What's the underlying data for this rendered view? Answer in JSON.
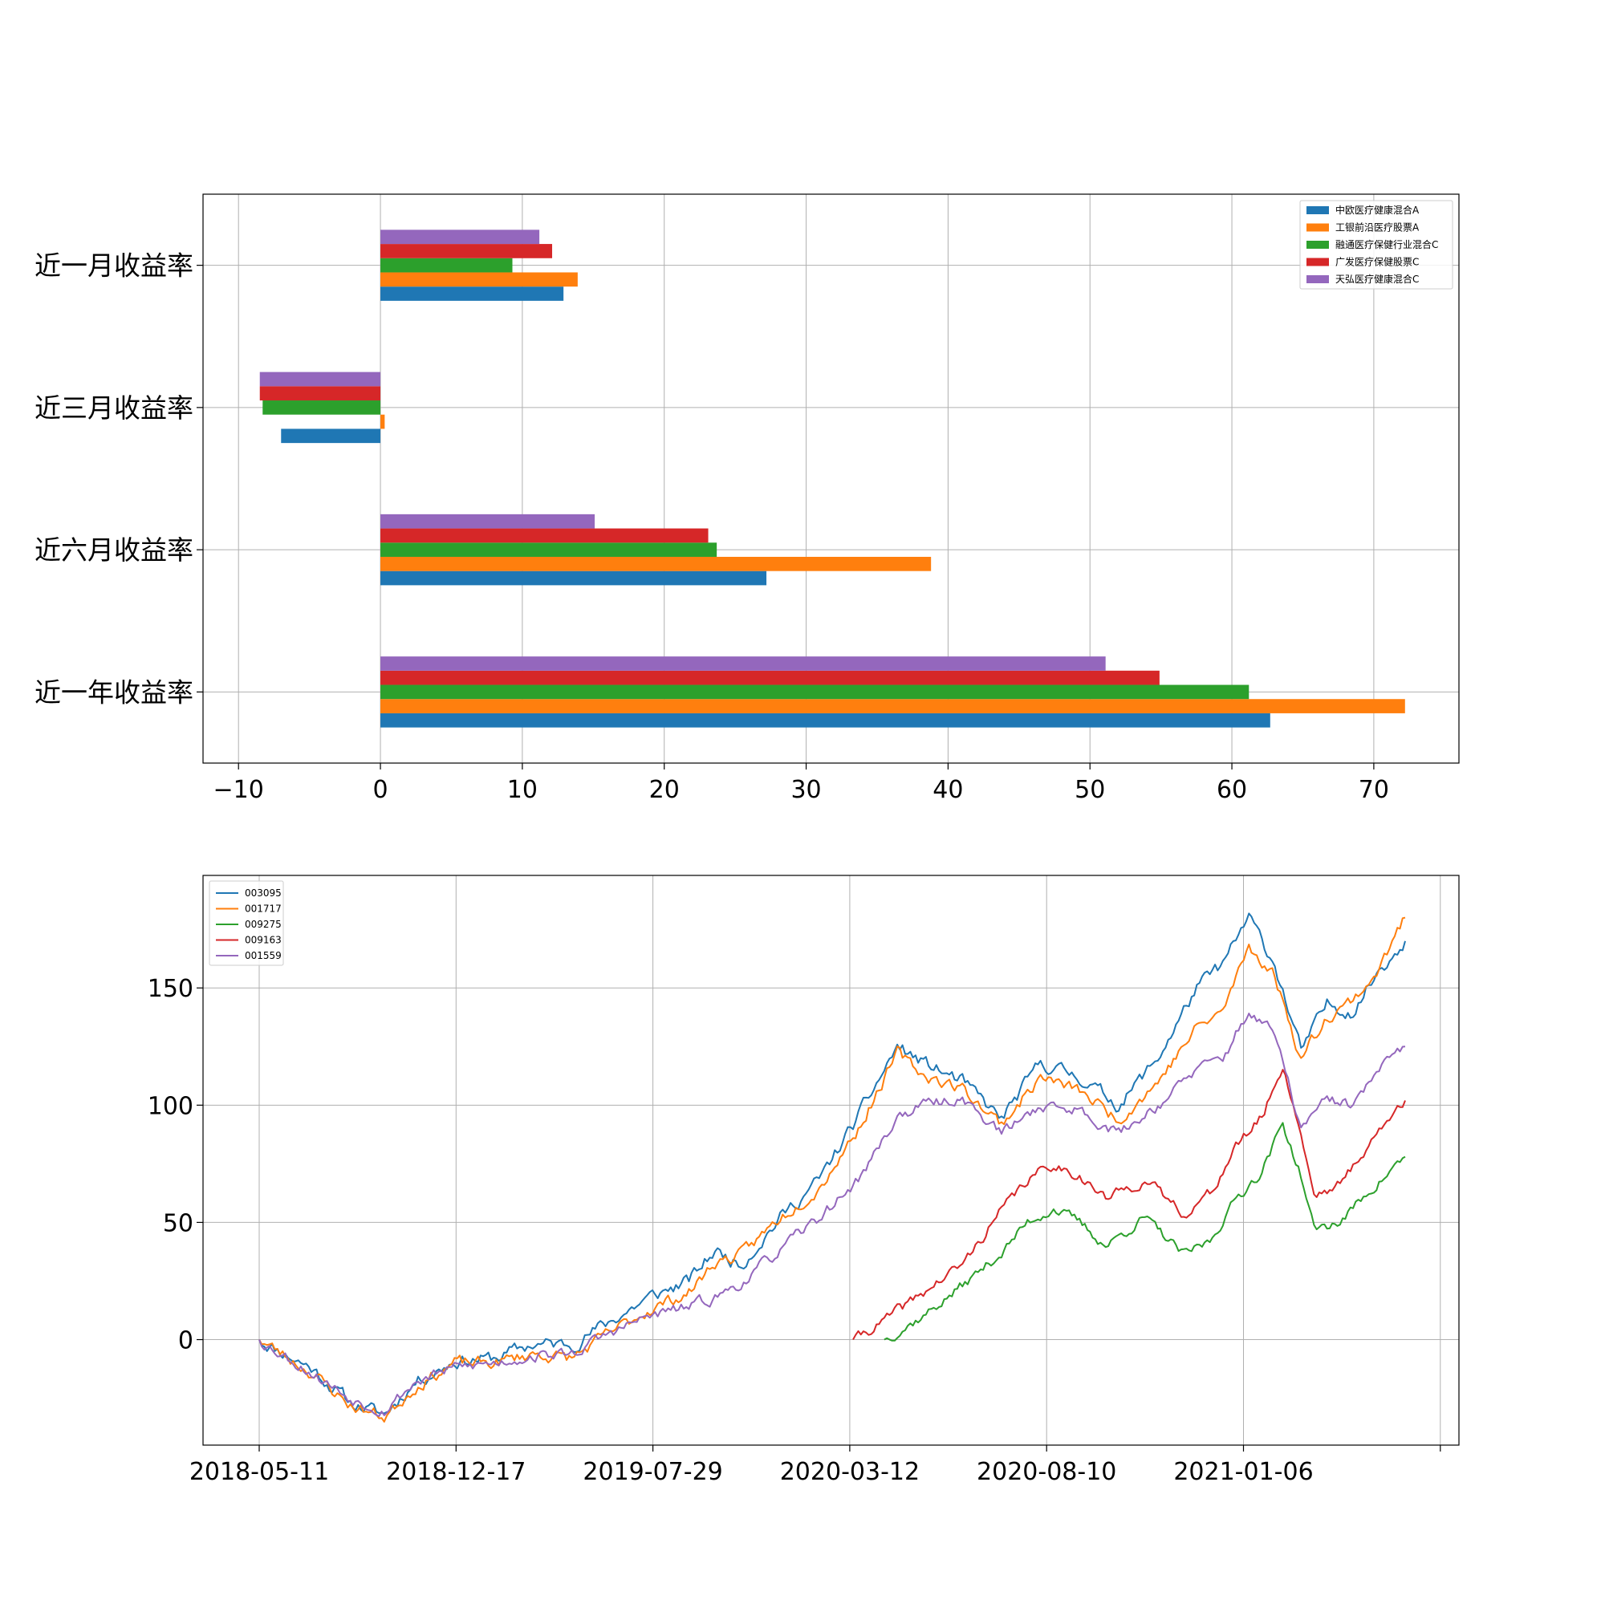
{
  "chart_data": [
    {
      "type": "bar",
      "orientation": "horizontal",
      "categories": [
        "近一月收益率",
        "近三月收益率",
        "近六月收益率",
        "近一年收益率"
      ],
      "series": [
        {
          "name": "中欧医疗健康混合A",
          "color": "#1f77b4",
          "values": [
            12.9,
            -7.0,
            27.2,
            62.7
          ]
        },
        {
          "name": "工银前沿医疗股票A",
          "color": "#ff7f0e",
          "values": [
            13.9,
            0.3,
            38.8,
            72.2
          ]
        },
        {
          "name": "融通医疗保健行业混合C",
          "color": "#2ca02c",
          "values": [
            9.3,
            -8.3,
            23.7,
            61.2
          ]
        },
        {
          "name": "广发医疗保健股票C",
          "color": "#d62728",
          "values": [
            12.1,
            -8.5,
            23.1,
            54.9
          ]
        },
        {
          "name": "天弘医疗健康混合C",
          "color": "#9467bd",
          "values": [
            11.2,
            -8.5,
            15.1,
            51.1
          ]
        }
      ],
      "xticks": [
        "−10",
        "0",
        "10",
        "20",
        "30",
        "40",
        "50",
        "60",
        "70"
      ],
      "xlim": [
        -12.5,
        76
      ],
      "grid": true,
      "legend_position": "upper right"
    },
    {
      "type": "line",
      "xticks": [
        "2018-05-11",
        "2018-12-17",
        "2019-07-29",
        "2020-03-12",
        "2020-08-10",
        "2021-01-06",
        ""
      ],
      "yticks": [
        "0",
        "50",
        "100",
        "150"
      ],
      "ylim": [
        -45,
        198
      ],
      "grid": true,
      "legend_position": "upper left",
      "series": [
        {
          "name": "003095",
          "color": "#1f77b4",
          "start": 0,
          "anchors": [
            [
              0,
              0
            ],
            [
              20,
              -12
            ],
            [
              35,
              -27
            ],
            [
              48,
              -32
            ],
            [
              60,
              -18
            ],
            [
              75,
              -9
            ],
            [
              90,
              -8
            ],
            [
              105,
              -2
            ],
            [
              120,
              -2
            ],
            [
              135,
              8
            ],
            [
              150,
              18
            ],
            [
              165,
              25
            ],
            [
              175,
              38
            ],
            [
              185,
              32
            ],
            [
              200,
              52
            ],
            [
              215,
              68
            ],
            [
              230,
              95
            ],
            [
              245,
              125
            ],
            [
              255,
              118
            ],
            [
              270,
              110
            ],
            [
              285,
              94
            ],
            [
              300,
              118
            ],
            [
              315,
              112
            ],
            [
              330,
              100
            ],
            [
              345,
              120
            ],
            [
              360,
              150
            ],
            [
              370,
              160
            ],
            [
              380,
              180
            ],
            [
              390,
              160
            ],
            [
              400,
              123
            ],
            [
              410,
              143
            ],
            [
              420,
              140
            ],
            [
              430,
              158
            ],
            [
              440,
              170
            ]
          ],
          "values": []
        },
        {
          "name": "001717",
          "color": "#ff7f0e",
          "start": 0,
          "anchors": [
            [
              0,
              0
            ],
            [
              20,
              -14
            ],
            [
              35,
              -28
            ],
            [
              48,
              -33
            ],
            [
              60,
              -20
            ],
            [
              75,
              -10
            ],
            [
              90,
              -10
            ],
            [
              105,
              -6
            ],
            [
              120,
              -8
            ],
            [
              135,
              3
            ],
            [
              150,
              13
            ],
            [
              165,
              20
            ],
            [
              175,
              33
            ],
            [
              185,
              36
            ],
            [
              200,
              52
            ],
            [
              215,
              65
            ],
            [
              230,
              90
            ],
            [
              245,
              122
            ],
            [
              255,
              113
            ],
            [
              270,
              107
            ],
            [
              285,
              92
            ],
            [
              300,
              112
            ],
            [
              315,
              106
            ],
            [
              330,
              94
            ],
            [
              345,
              110
            ],
            [
              360,
              133
            ],
            [
              370,
              140
            ],
            [
              380,
              168
            ],
            [
              390,
              155
            ],
            [
              400,
              120
            ],
            [
              410,
              138
            ],
            [
              420,
              145
            ],
            [
              430,
              158
            ],
            [
              440,
              180
            ]
          ],
          "values": []
        },
        {
          "name": "009275",
          "color": "#2ca02c",
          "start": 240,
          "anchors": [
            [
              240,
              0
            ],
            [
              255,
              10
            ],
            [
              270,
              23
            ],
            [
              285,
              37
            ],
            [
              295,
              50
            ],
            [
              305,
              56
            ],
            [
              315,
              50
            ],
            [
              325,
              40
            ],
            [
              340,
              52
            ],
            [
              355,
              36
            ],
            [
              365,
              42
            ],
            [
              375,
              60
            ],
            [
              385,
              72
            ],
            [
              393,
              92
            ],
            [
              400,
              70
            ],
            [
              405,
              47
            ],
            [
              415,
              50
            ],
            [
              425,
              62
            ],
            [
              440,
              78
            ]
          ],
          "values": []
        },
        {
          "name": "009163",
          "color": "#d62728",
          "start": 228,
          "anchors": [
            [
              228,
              0
            ],
            [
              240,
              8
            ],
            [
              255,
              20
            ],
            [
              270,
              32
            ],
            [
              285,
              55
            ],
            [
              295,
              68
            ],
            [
              305,
              75
            ],
            [
              315,
              70
            ],
            [
              325,
              60
            ],
            [
              340,
              68
            ],
            [
              355,
              54
            ],
            [
              365,
              62
            ],
            [
              375,
              82
            ],
            [
              385,
              95
            ],
            [
              393,
              117
            ],
            [
              400,
              88
            ],
            [
              405,
              62
            ],
            [
              415,
              66
            ],
            [
              425,
              82
            ],
            [
              440,
              102
            ]
          ],
          "values": []
        },
        {
          "name": "001559",
          "color": "#9467bd",
          "start": 0,
          "anchors": [
            [
              0,
              0
            ],
            [
              20,
              -14
            ],
            [
              35,
              -25
            ],
            [
              48,
              -30
            ],
            [
              60,
              -18
            ],
            [
              75,
              -12
            ],
            [
              90,
              -10
            ],
            [
              105,
              -7
            ],
            [
              120,
              -6
            ],
            [
              135,
              3
            ],
            [
              150,
              10
            ],
            [
              165,
              14
            ],
            [
              175,
              18
            ],
            [
              185,
              24
            ],
            [
              200,
              38
            ],
            [
              215,
              52
            ],
            [
              230,
              68
            ],
            [
              245,
              95
            ],
            [
              255,
              100
            ],
            [
              270,
              103
            ],
            [
              285,
              88
            ],
            [
              300,
              100
            ],
            [
              315,
              98
            ],
            [
              330,
              88
            ],
            [
              345,
              100
            ],
            [
              360,
              115
            ],
            [
              370,
              120
            ],
            [
              380,
              140
            ],
            [
              390,
              130
            ],
            [
              400,
              90
            ],
            [
              410,
              102
            ],
            [
              420,
              100
            ],
            [
              430,
              115
            ],
            [
              440,
              125
            ]
          ],
          "values": []
        }
      ]
    }
  ]
}
